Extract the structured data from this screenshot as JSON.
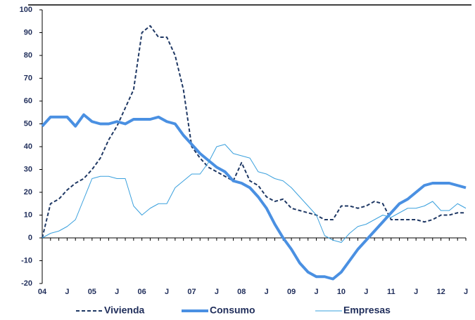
{
  "chart_data": {
    "type": "line",
    "categories": [
      "04",
      null,
      null,
      "J",
      null,
      null,
      "05",
      null,
      null,
      "J",
      null,
      null,
      "06",
      null,
      null,
      "J",
      null,
      null,
      "07",
      null,
      null,
      "J",
      null,
      null,
      "08",
      null,
      null,
      "J",
      null,
      null,
      "09",
      null,
      null,
      "J",
      null,
      null,
      "10",
      null,
      null,
      "J",
      null,
      null,
      "11",
      null,
      null,
      "J",
      null,
      null,
      "12",
      null,
      null,
      "J"
    ],
    "series": [
      {
        "name": "Vivienda",
        "color": "#1f3864",
        "dash": true,
        "width": 2,
        "values": [
          0,
          15,
          17,
          21,
          24,
          26,
          30,
          35,
          43,
          49,
          57,
          65,
          90,
          93,
          88,
          88,
          80,
          65,
          40,
          35,
          31,
          29,
          27,
          25,
          33,
          25,
          23,
          18,
          16,
          17,
          13,
          12,
          11,
          10,
          8,
          8,
          14,
          14,
          13,
          14,
          16,
          15,
          8,
          8,
          8,
          8,
          7,
          8,
          10,
          10,
          11,
          11
        ]
      },
      {
        "name": "Consumo",
        "color": "#4a90e2",
        "dash": false,
        "width": 4,
        "values": [
          49,
          53,
          53,
          53,
          49,
          54,
          51,
          50,
          50,
          51,
          50,
          52,
          52,
          52,
          53,
          51,
          50,
          45,
          41,
          37,
          34,
          31,
          29,
          25,
          24,
          22,
          18,
          13,
          6,
          0,
          -5,
          -11,
          -15,
          -17,
          -17,
          -18,
          -15,
          -10,
          -5,
          -1,
          3,
          7,
          11,
          15,
          17,
          20,
          23,
          24,
          24,
          24,
          23,
          22
        ]
      },
      {
        "name": "Empresas",
        "color": "#3aa0dd",
        "dash": false,
        "width": 1,
        "values": [
          0,
          2,
          3,
          5,
          8,
          17,
          26,
          27,
          27,
          26,
          26,
          14,
          10,
          13,
          15,
          15,
          22,
          25,
          28,
          28,
          33,
          40,
          41,
          37,
          36,
          35,
          29,
          28,
          26,
          25,
          22,
          18,
          14,
          10,
          1,
          -1,
          -2,
          2,
          5,
          6,
          8,
          10,
          9,
          11,
          13,
          13,
          14,
          16,
          12,
          12,
          15,
          13
        ]
      }
    ],
    "ylim": [
      -20,
      100
    ],
    "yticks": [
      -20,
      -10,
      0,
      10,
      20,
      30,
      40,
      50,
      60,
      70,
      80,
      90,
      100
    ],
    "grid": false,
    "legend": "bottom"
  }
}
